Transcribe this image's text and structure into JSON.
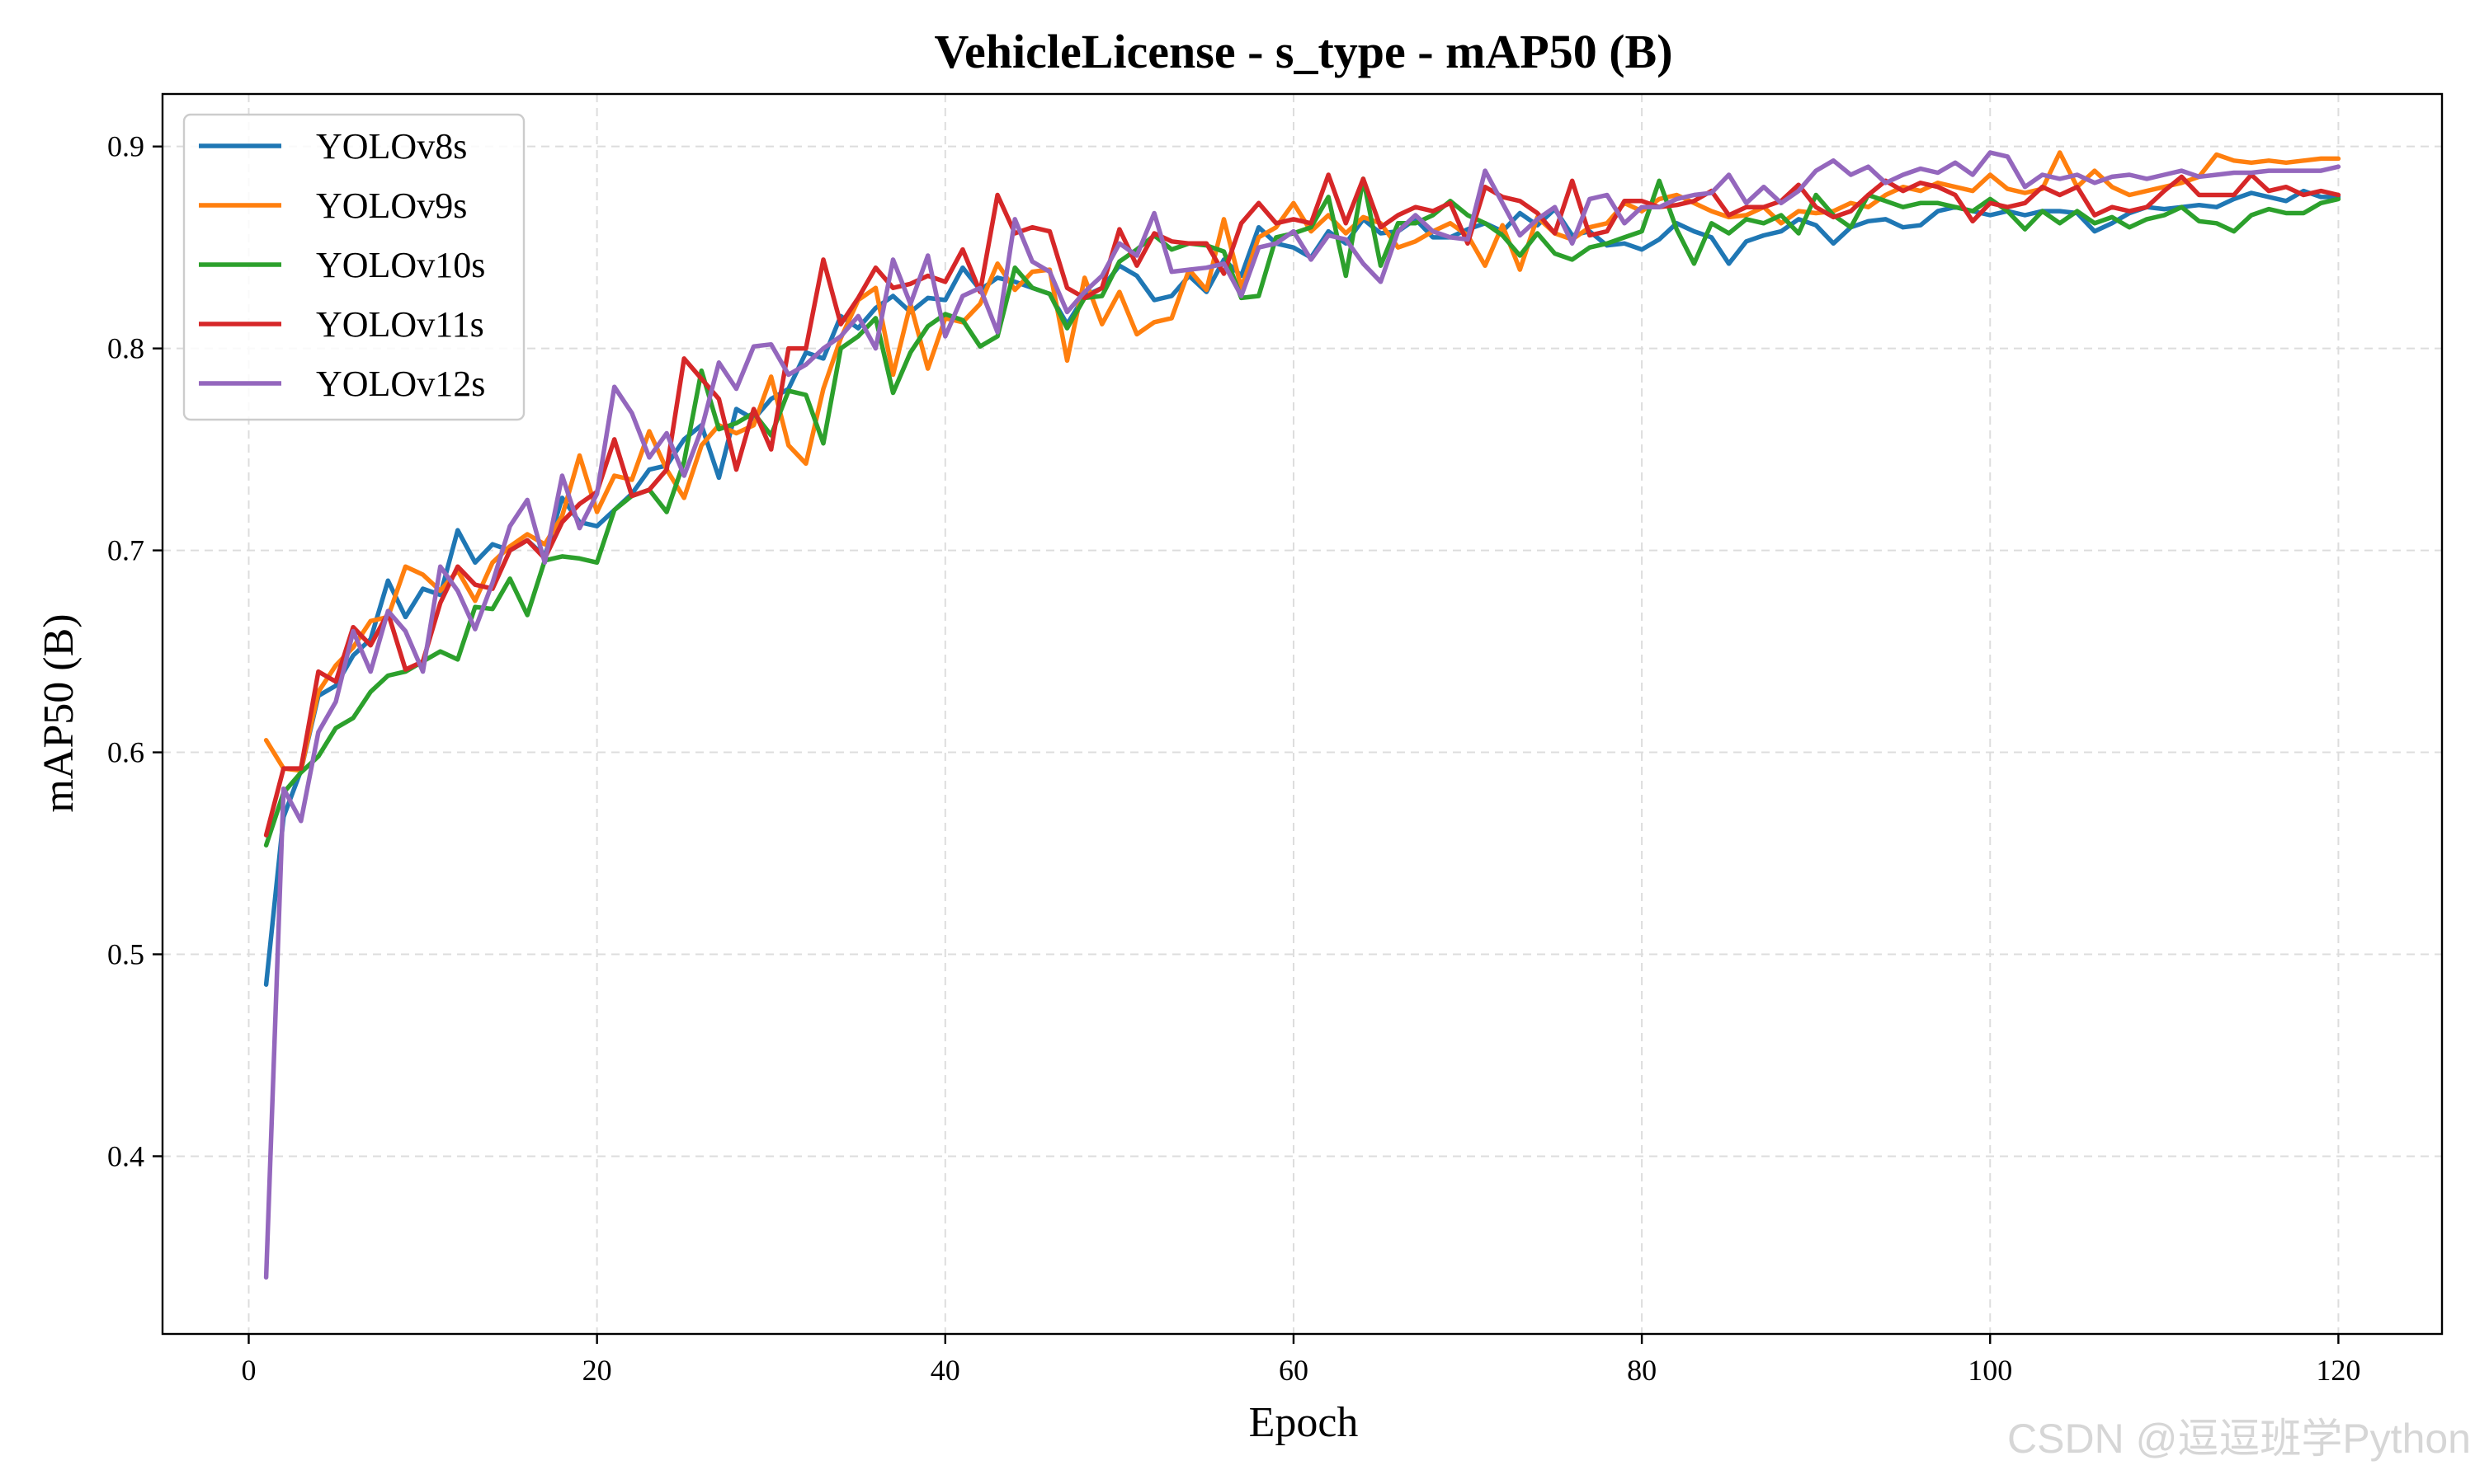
{
  "watermark": "CSDN @逗逗班学Python",
  "chart_data": {
    "type": "line",
    "title": "VehicleLicense - s_type - mAP50 (B)",
    "xlabel": "Epoch",
    "ylabel": "mAP50 (B)",
    "xlim": [
      -4.95,
      125.95
    ],
    "ylim": [
      0.312,
      0.926
    ],
    "xticks": [
      0,
      20,
      40,
      60,
      80,
      100,
      120
    ],
    "xtick_labels": [
      "0",
      "20",
      "40",
      "60",
      "80",
      "100",
      "120"
    ],
    "yticks": [
      0.4,
      0.5,
      0.6,
      0.7,
      0.8,
      0.9
    ],
    "ytick_labels": [
      "0.4",
      "0.5",
      "0.6",
      "0.7",
      "0.8",
      "0.9"
    ],
    "grid": true,
    "legend_position": "top-left",
    "x": [
      1,
      2,
      3,
      4,
      5,
      6,
      7,
      8,
      9,
      10,
      11,
      12,
      13,
      14,
      15,
      16,
      17,
      18,
      19,
      20,
      21,
      22,
      23,
      24,
      25,
      26,
      27,
      28,
      29,
      30,
      31,
      32,
      33,
      34,
      35,
      36,
      37,
      38,
      39,
      40,
      41,
      42,
      43,
      44,
      45,
      46,
      47,
      48,
      49,
      50,
      51,
      52,
      53,
      54,
      55,
      56,
      57,
      58,
      59,
      60,
      61,
      62,
      63,
      64,
      65,
      66,
      67,
      68,
      69,
      70,
      71,
      72,
      73,
      74,
      75,
      76,
      77,
      78,
      79,
      80,
      81,
      82,
      83,
      84,
      85,
      86,
      87,
      88,
      89,
      90,
      91,
      92,
      93,
      94,
      95,
      96,
      97,
      98,
      99,
      100,
      101,
      102,
      103,
      104,
      105,
      106,
      107,
      108,
      109,
      110,
      111,
      112,
      113,
      114,
      115,
      116,
      117,
      118,
      119,
      120
    ],
    "series": [
      {
        "name": "YOLOv8s",
        "color": "#1f77b4",
        "values": [
          0.485,
          0.568,
          0.591,
          0.628,
          0.633,
          0.648,
          0.656,
          0.685,
          0.667,
          0.681,
          0.678,
          0.71,
          0.694,
          0.703,
          0.7,
          0.705,
          0.697,
          0.726,
          0.714,
          0.712,
          0.72,
          0.728,
          0.74,
          0.742,
          0.755,
          0.762,
          0.736,
          0.77,
          0.765,
          0.775,
          0.78,
          0.798,
          0.795,
          0.816,
          0.81,
          0.82,
          0.826,
          0.818,
          0.825,
          0.824,
          0.84,
          0.829,
          0.835,
          0.833,
          0.83,
          0.827,
          0.812,
          0.826,
          0.83,
          0.841,
          0.836,
          0.824,
          0.826,
          0.836,
          0.828,
          0.844,
          0.836,
          0.86,
          0.852,
          0.85,
          0.845,
          0.858,
          0.852,
          0.864,
          0.857,
          0.858,
          0.864,
          0.855,
          0.855,
          0.859,
          0.862,
          0.858,
          0.867,
          0.861,
          0.869,
          0.856,
          0.858,
          0.851,
          0.852,
          0.849,
          0.854,
          0.862,
          0.858,
          0.855,
          0.842,
          0.853,
          0.856,
          0.858,
          0.864,
          0.861,
          0.852,
          0.86,
          0.863,
          0.864,
          0.86,
          0.861,
          0.868,
          0.87,
          0.868,
          0.866,
          0.868,
          0.866,
          0.868,
          0.868,
          0.867,
          0.858,
          0.862,
          0.867,
          0.87,
          0.869,
          0.87,
          0.871,
          0.87,
          0.874,
          0.877,
          0.875,
          0.873,
          0.878,
          0.875,
          0.875
        ]
      },
      {
        "name": "YOLOv9s",
        "color": "#ff7f0e",
        "values": [
          0.606,
          0.592,
          0.591,
          0.63,
          0.643,
          0.652,
          0.665,
          0.667,
          0.692,
          0.688,
          0.68,
          0.69,
          0.675,
          0.694,
          0.702,
          0.708,
          0.703,
          0.717,
          0.747,
          0.719,
          0.737,
          0.735,
          0.759,
          0.74,
          0.726,
          0.752,
          0.762,
          0.758,
          0.762,
          0.786,
          0.752,
          0.743,
          0.78,
          0.805,
          0.824,
          0.83,
          0.787,
          0.822,
          0.79,
          0.815,
          0.813,
          0.822,
          0.842,
          0.829,
          0.838,
          0.839,
          0.794,
          0.835,
          0.812,
          0.828,
          0.807,
          0.813,
          0.815,
          0.839,
          0.829,
          0.864,
          0.83,
          0.855,
          0.86,
          0.872,
          0.858,
          0.866,
          0.857,
          0.865,
          0.862,
          0.85,
          0.853,
          0.858,
          0.862,
          0.856,
          0.841,
          0.861,
          0.839,
          0.865,
          0.857,
          0.854,
          0.86,
          0.862,
          0.872,
          0.868,
          0.874,
          0.876,
          0.872,
          0.868,
          0.865,
          0.866,
          0.87,
          0.862,
          0.868,
          0.867,
          0.868,
          0.872,
          0.87,
          0.876,
          0.88,
          0.878,
          0.882,
          0.88,
          0.878,
          0.886,
          0.879,
          0.877,
          0.879,
          0.897,
          0.88,
          0.888,
          0.88,
          0.876,
          0.878,
          0.88,
          0.882,
          0.885,
          0.896,
          0.893,
          0.892,
          0.893,
          0.892,
          0.893,
          0.894,
          0.894
        ]
      },
      {
        "name": "YOLOv10s",
        "color": "#2ca02c",
        "values": [
          0.554,
          0.58,
          0.59,
          0.598,
          0.612,
          0.617,
          0.63,
          0.638,
          0.64,
          0.645,
          0.65,
          0.646,
          0.672,
          0.671,
          0.686,
          0.668,
          0.695,
          0.697,
          0.696,
          0.694,
          0.72,
          0.727,
          0.73,
          0.719,
          0.744,
          0.789,
          0.76,
          0.763,
          0.768,
          0.757,
          0.779,
          0.777,
          0.753,
          0.8,
          0.806,
          0.815,
          0.778,
          0.798,
          0.811,
          0.817,
          0.814,
          0.801,
          0.806,
          0.84,
          0.83,
          0.827,
          0.81,
          0.825,
          0.826,
          0.843,
          0.849,
          0.856,
          0.849,
          0.852,
          0.851,
          0.848,
          0.825,
          0.826,
          0.855,
          0.857,
          0.86,
          0.875,
          0.836,
          0.884,
          0.841,
          0.862,
          0.862,
          0.866,
          0.873,
          0.866,
          0.862,
          0.856,
          0.846,
          0.857,
          0.847,
          0.844,
          0.85,
          0.852,
          0.855,
          0.858,
          0.883,
          0.859,
          0.842,
          0.862,
          0.857,
          0.864,
          0.862,
          0.866,
          0.857,
          0.876,
          0.866,
          0.86,
          0.876,
          0.873,
          0.87,
          0.872,
          0.872,
          0.87,
          0.868,
          0.874,
          0.868,
          0.859,
          0.868,
          0.862,
          0.868,
          0.862,
          0.865,
          0.86,
          0.864,
          0.866,
          0.87,
          0.863,
          0.862,
          0.858,
          0.866,
          0.869,
          0.867,
          0.867,
          0.872,
          0.874
        ]
      },
      {
        "name": "YOLOv11s",
        "color": "#d62728",
        "values": [
          0.559,
          0.592,
          0.592,
          0.64,
          0.635,
          0.662,
          0.653,
          0.669,
          0.641,
          0.645,
          0.674,
          0.692,
          0.683,
          0.681,
          0.7,
          0.705,
          0.696,
          0.714,
          0.723,
          0.729,
          0.755,
          0.727,
          0.73,
          0.74,
          0.795,
          0.785,
          0.775,
          0.74,
          0.77,
          0.75,
          0.8,
          0.8,
          0.844,
          0.812,
          0.825,
          0.84,
          0.83,
          0.832,
          0.836,
          0.833,
          0.849,
          0.828,
          0.876,
          0.857,
          0.86,
          0.858,
          0.83,
          0.825,
          0.83,
          0.859,
          0.841,
          0.857,
          0.853,
          0.852,
          0.852,
          0.837,
          0.862,
          0.872,
          0.862,
          0.864,
          0.862,
          0.886,
          0.862,
          0.884,
          0.86,
          0.866,
          0.87,
          0.868,
          0.872,
          0.852,
          0.88,
          0.875,
          0.873,
          0.867,
          0.857,
          0.883,
          0.856,
          0.858,
          0.873,
          0.873,
          0.87,
          0.871,
          0.873,
          0.878,
          0.866,
          0.87,
          0.87,
          0.873,
          0.881,
          0.87,
          0.865,
          0.868,
          0.876,
          0.883,
          0.878,
          0.882,
          0.88,
          0.876,
          0.863,
          0.872,
          0.87,
          0.872,
          0.88,
          0.876,
          0.88,
          0.866,
          0.87,
          0.868,
          0.87,
          0.878,
          0.885,
          0.876,
          0.876,
          0.876,
          0.886,
          0.878,
          0.88,
          0.876,
          0.878,
          0.876
        ]
      },
      {
        "name": "YOLOv12s",
        "color": "#9467bd",
        "values": [
          0.34,
          0.582,
          0.566,
          0.61,
          0.625,
          0.66,
          0.64,
          0.67,
          0.66,
          0.64,
          0.692,
          0.68,
          0.661,
          0.684,
          0.712,
          0.725,
          0.694,
          0.737,
          0.711,
          0.728,
          0.781,
          0.768,
          0.746,
          0.758,
          0.737,
          0.76,
          0.793,
          0.78,
          0.801,
          0.802,
          0.787,
          0.792,
          0.8,
          0.806,
          0.816,
          0.8,
          0.844,
          0.822,
          0.846,
          0.806,
          0.826,
          0.83,
          0.808,
          0.864,
          0.843,
          0.838,
          0.818,
          0.828,
          0.836,
          0.852,
          0.846,
          0.867,
          0.838,
          0.839,
          0.84,
          0.842,
          0.826,
          0.85,
          0.852,
          0.858,
          0.844,
          0.856,
          0.854,
          0.842,
          0.833,
          0.858,
          0.866,
          0.858,
          0.855,
          0.854,
          0.888,
          0.872,
          0.856,
          0.864,
          0.87,
          0.852,
          0.874,
          0.876,
          0.862,
          0.87,
          0.87,
          0.874,
          0.876,
          0.877,
          0.886,
          0.872,
          0.88,
          0.872,
          0.878,
          0.888,
          0.893,
          0.886,
          0.89,
          0.882,
          0.886,
          0.889,
          0.887,
          0.892,
          0.886,
          0.897,
          0.895,
          0.88,
          0.886,
          0.884,
          0.886,
          0.882,
          0.885,
          0.886,
          0.884,
          0.886,
          0.888,
          0.885,
          0.886,
          0.887,
          0.887,
          0.888,
          0.888,
          0.888,
          0.888,
          0.89
        ]
      }
    ]
  }
}
